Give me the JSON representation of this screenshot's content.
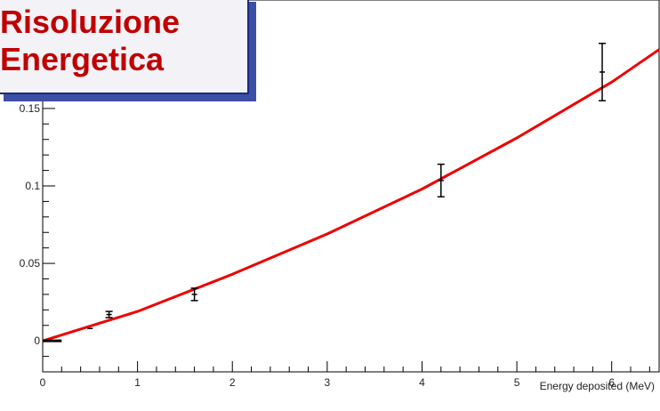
{
  "title_box": {
    "line1": "Risoluzione",
    "line2": "Energetica",
    "text_color": "#c00000",
    "border_color": "#1b2a80"
  },
  "chart_data": {
    "type": "scatter",
    "title": "Risoluzione Energetica",
    "xlabel": "Energy deposited (MeV)",
    "ylabel": "",
    "xlim": [
      0,
      6.5
    ],
    "ylim": [
      -0.02,
      0.22
    ],
    "x_ticks": [
      0,
      1,
      2,
      3,
      4,
      5,
      6
    ],
    "x_tick_labels": [
      "0",
      "1",
      "2",
      "3",
      "4",
      "5",
      "6"
    ],
    "y_ticks": [
      0,
      0.05,
      0.1,
      0.15
    ],
    "y_tick_labels": [
      "0",
      "0.05",
      "0.1",
      "0.15"
    ],
    "grid": false,
    "series": [
      {
        "kind": "points",
        "color": "#000000",
        "x": [
          0.1,
          0.5,
          0.7,
          1.6,
          4.2,
          5.9
        ],
        "y": [
          0.0,
          0.008,
          0.017,
          0.03,
          0.1035,
          0.1735
        ],
        "yerr": [
          0.0,
          0.0,
          0.002,
          0.004,
          0.0105,
          0.0185
        ]
      },
      {
        "kind": "fit",
        "color": "#ee0000",
        "x": [
          0,
          1,
          2,
          3,
          4,
          5,
          6,
          6.5
        ],
        "y": [
          0.0,
          0.019,
          0.043,
          0.069,
          0.098,
          0.131,
          0.167,
          0.188
        ]
      }
    ]
  }
}
